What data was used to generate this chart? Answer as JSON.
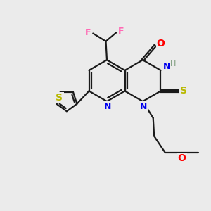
{
  "background_color": "#ebebeb",
  "bond_color": "#1a1a1a",
  "atom_colors": {
    "F": "#ff69b4",
    "O": "#ff0000",
    "N": "#0000ee",
    "S": "#b8b800",
    "H": "#7a9a7a",
    "C": "#1a1a1a"
  },
  "figsize": [
    3.0,
    3.0
  ],
  "dpi": 100
}
